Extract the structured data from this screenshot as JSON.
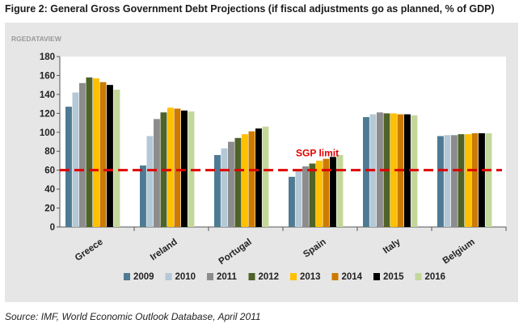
{
  "figure_title": "Figure 2: General Gross Government Debt Projections (if fiscal adjustments go as planned, % of GDP)",
  "source": "Source: IMF, World Economic Outlook Database, April 2011",
  "chart_data": {
    "type": "bar",
    "watermark": "RGEDATAVIEW",
    "title": "General Gross Government Debt Projections",
    "xlabel": "",
    "ylabel": "% of GDP",
    "ylim": [
      0,
      180
    ],
    "yticks": [
      0,
      20,
      40,
      60,
      80,
      100,
      120,
      140,
      160,
      180
    ],
    "grid": false,
    "legend_position": "bottom",
    "categories": [
      "Greece",
      "Ireland",
      "Portugal",
      "Spain",
      "Italy",
      "Belgium"
    ],
    "series": [
      {
        "name": "2009",
        "color": "#4e7a93",
        "values": [
          127,
          65,
          76,
          53,
          116,
          96
        ]
      },
      {
        "name": "2010",
        "color": "#b4c8d6",
        "values": [
          142,
          96,
          83,
          60,
          119,
          97
        ]
      },
      {
        "name": "2011",
        "color": "#8c8c8c",
        "values": [
          152,
          114,
          90,
          64,
          121,
          97
        ]
      },
      {
        "name": "2012",
        "color": "#4f6228",
        "values": [
          158,
          121,
          94,
          67,
          120,
          98
        ]
      },
      {
        "name": "2013",
        "color": "#ffc000",
        "values": [
          157,
          126,
          98,
          70,
          120,
          98
        ]
      },
      {
        "name": "2014",
        "color": "#cc7a00",
        "values": [
          153,
          125,
          101,
          72,
          119,
          99
        ]
      },
      {
        "name": "2015",
        "color": "#000000",
        "values": [
          150,
          123,
          104,
          74,
          119,
          99
        ]
      },
      {
        "name": "2016",
        "color": "#c4d79b",
        "values": [
          145,
          122,
          106,
          76,
          118,
          99
        ]
      }
    ],
    "reference_line": {
      "label": "SGP limit",
      "value": 60,
      "color": "#e00000"
    }
  }
}
